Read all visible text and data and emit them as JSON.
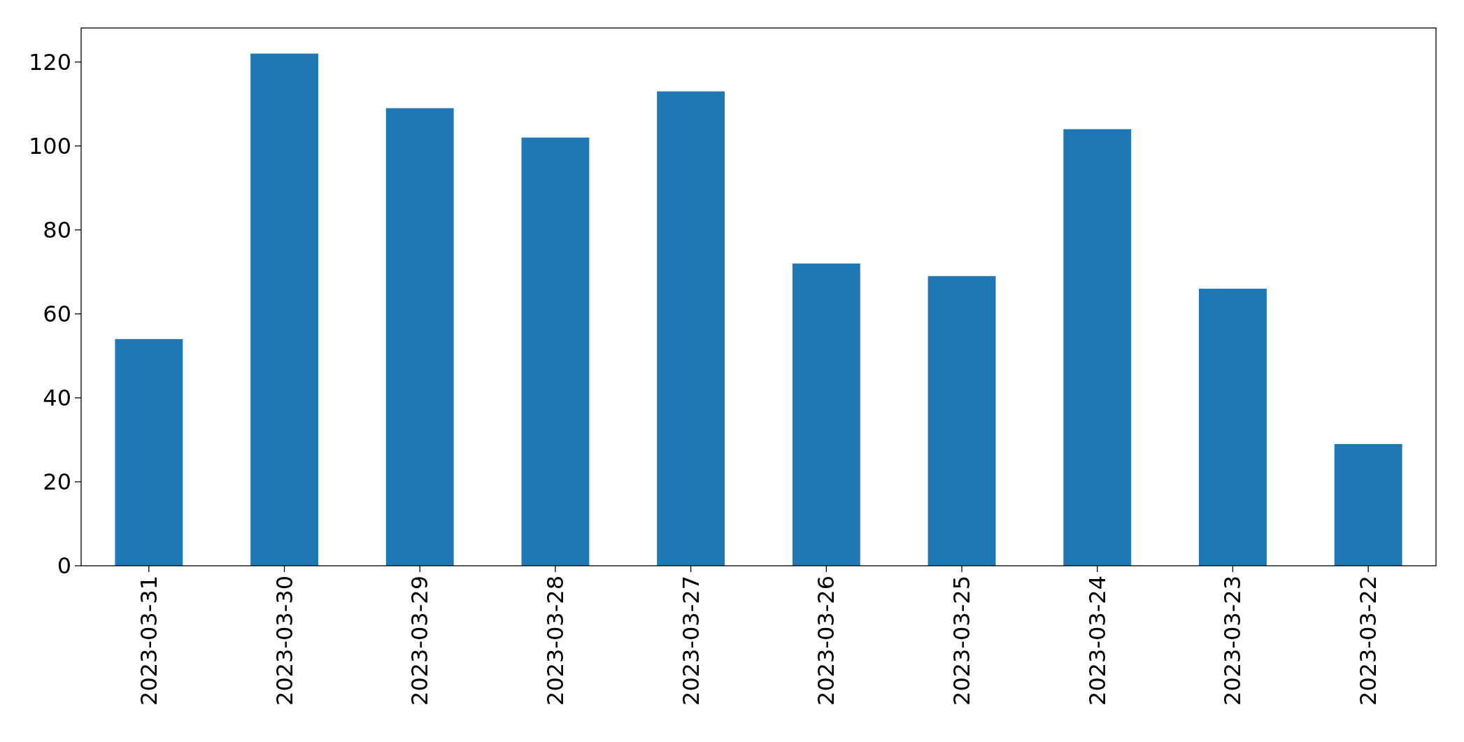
{
  "chart_data": {
    "type": "bar",
    "categories": [
      "2023-03-31",
      "2023-03-30",
      "2023-03-29",
      "2023-03-28",
      "2023-03-27",
      "2023-03-26",
      "2023-03-25",
      "2023-03-24",
      "2023-03-23",
      "2023-03-22"
    ],
    "values": [
      54,
      122,
      109,
      102,
      113,
      72,
      69,
      104,
      66,
      29
    ],
    "color": "#1f77b4",
    "ylim": [
      0,
      128.1
    ],
    "yticks": [
      0,
      20,
      40,
      60,
      80,
      100,
      120
    ]
  }
}
